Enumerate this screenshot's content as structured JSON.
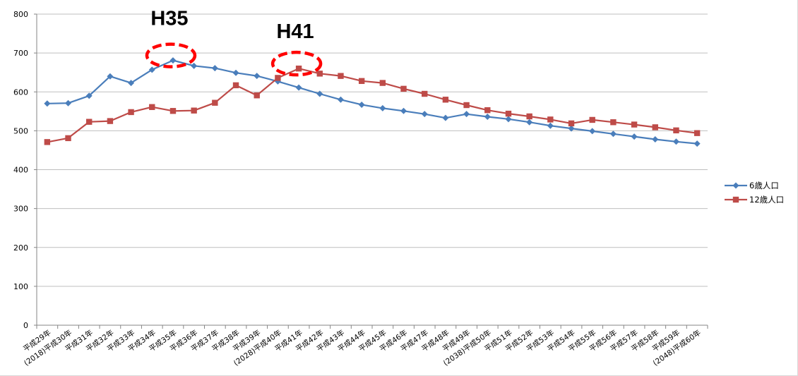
{
  "chart_data": {
    "type": "line",
    "categories": [
      "平成29年",
      "(2018)平成30年",
      "平成31年",
      "平成32年",
      "平成33年",
      "平成34年",
      "平成35年",
      "平成36年",
      "平成37年",
      "平成38年",
      "平成39年",
      "(2028)平成40年",
      "平成41年",
      "平成42年",
      "平成43年",
      "平成44年",
      "平成45年",
      "平成46年",
      "平成47年",
      "平成48年",
      "平成49年",
      "(2038)平成50年",
      "平成51年",
      "平成52年",
      "平成53年",
      "平成54年",
      "平成55年",
      "平成56年",
      "平成57年",
      "平成58年",
      "平成59年",
      "(2048)平成60年"
    ],
    "series": [
      {
        "name": "6歳人口",
        "color": "#4a7ebb",
        "marker": "diamond",
        "values": [
          570,
          571,
          590,
          640,
          623,
          657,
          681,
          667,
          661,
          649,
          641,
          627,
          611,
          595,
          580,
          567,
          558,
          551,
          543,
          533,
          543,
          536,
          530,
          522,
          513,
          506,
          499,
          492,
          485,
          478,
          472,
          467
        ]
      },
      {
        "name": "12歳人口",
        "color": "#be4b48",
        "marker": "square",
        "values": [
          471,
          481,
          523,
          525,
          548,
          561,
          551,
          552,
          572,
          617,
          591,
          636,
          660,
          647,
          641,
          628,
          623,
          608,
          595,
          580,
          566,
          553,
          544,
          537,
          529,
          519,
          528,
          522,
          516,
          509,
          501,
          494
        ]
      }
    ],
    "yticks": [
      0,
      100,
      200,
      300,
      400,
      500,
      600,
      700,
      800
    ],
    "ylim": [
      0,
      800
    ],
    "grid": true,
    "legend_position": "right",
    "annotations": [
      {
        "text": "H35",
        "target": "平成35年",
        "series": "6歳人口",
        "style": "red dashed ellipse"
      },
      {
        "text": "H41",
        "target": "平成41年",
        "series": "12歳人口",
        "style": "red dashed ellipse"
      }
    ]
  }
}
